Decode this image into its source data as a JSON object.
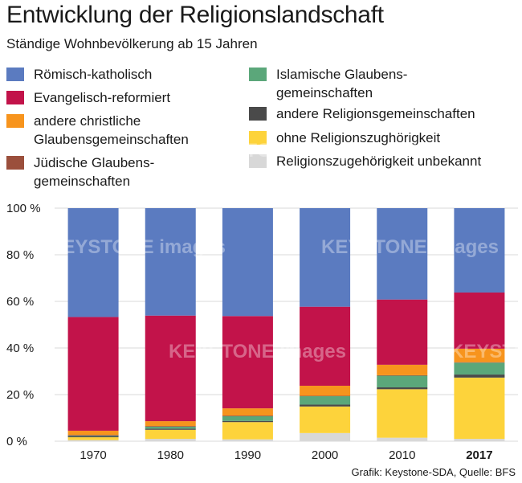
{
  "title": "Entwicklung der Religionslandschaft",
  "subtitle": "Ständige Wohnbevölkerung ab 15 Jahren",
  "footer": "Grafik: Keystone-SDA, Quelle: BFS",
  "watermark": "KEYSTONE images",
  "legend": {
    "left": [
      {
        "label": "Römisch-katholisch",
        "color": "#5b7bc0"
      },
      {
        "label": "Evangelisch-reformiert",
        "color": "#c2134a"
      },
      {
        "label": "andere christliche Glaubensgemeinschaften",
        "color": "#f7941d"
      },
      {
        "label": "Jüdische Glaubens-gemeinschaften",
        "color": "#9b4f3c"
      }
    ],
    "right": [
      {
        "label": "Islamische Glaubens-gemeinschaften",
        "color": "#5ba77a"
      },
      {
        "label": "andere Religionsgemeinschaften",
        "color": "#4a4a4a"
      },
      {
        "label": "ohne Religionszughörigkeit",
        "color": "#fdd33b"
      },
      {
        "label": "Religionszugehörigkeit unbekannt",
        "color": "#d8d8d8"
      }
    ]
  },
  "chart_data": {
    "type": "bar",
    "stacked": true,
    "categories": [
      "1970",
      "1980",
      "1990",
      "2000",
      "2010",
      "2017"
    ],
    "bold_category": "2017",
    "ylim": [
      0,
      100
    ],
    "yticks": [
      0,
      20,
      40,
      60,
      80,
      100
    ],
    "ytick_labels": [
      "0 %",
      "20 %",
      "40 %",
      "60 %",
      "80 %",
      "100 %"
    ],
    "series": [
      {
        "name": "Religionszugehörigkeit unbekannt",
        "color": "#d8d8d8",
        "values": [
          0.5,
          1.0,
          0.8,
          3.5,
          1.5,
          1.0
        ]
      },
      {
        "name": "ohne Religionszughörigkeit",
        "color": "#fdd33b",
        "values": [
          1.2,
          3.9,
          7.4,
          11.4,
          20.8,
          26.3
        ]
      },
      {
        "name": "andere Religionsgemeinschaften",
        "color": "#4a4a4a",
        "values": [
          0.5,
          0.5,
          0.5,
          0.8,
          0.8,
          1.3
        ]
      },
      {
        "name": "Islamische Glaubens-gemeinschaften",
        "color": "#5ba77a",
        "values": [
          0.2,
          0.8,
          2.0,
          3.6,
          5.0,
          5.1
        ]
      },
      {
        "name": "Jüdische Glaubens-gemeinschaften",
        "color": "#9b4f3c",
        "values": [
          0.3,
          0.3,
          0.3,
          0.2,
          0.2,
          0.2
        ]
      },
      {
        "name": "andere christliche Glaubensgemeinschaften",
        "color": "#f7941d",
        "values": [
          1.8,
          2.1,
          3.1,
          4.3,
          4.5,
          5.8
        ]
      },
      {
        "name": "Evangelisch-reformiert",
        "color": "#c2134a",
        "values": [
          48.8,
          45.3,
          39.6,
          33.9,
          28.0,
          24.1
        ]
      },
      {
        "name": "Römisch-katholisch",
        "color": "#5b7bc0",
        "values": [
          46.7,
          46.1,
          46.3,
          42.3,
          39.2,
          36.2
        ]
      }
    ]
  }
}
